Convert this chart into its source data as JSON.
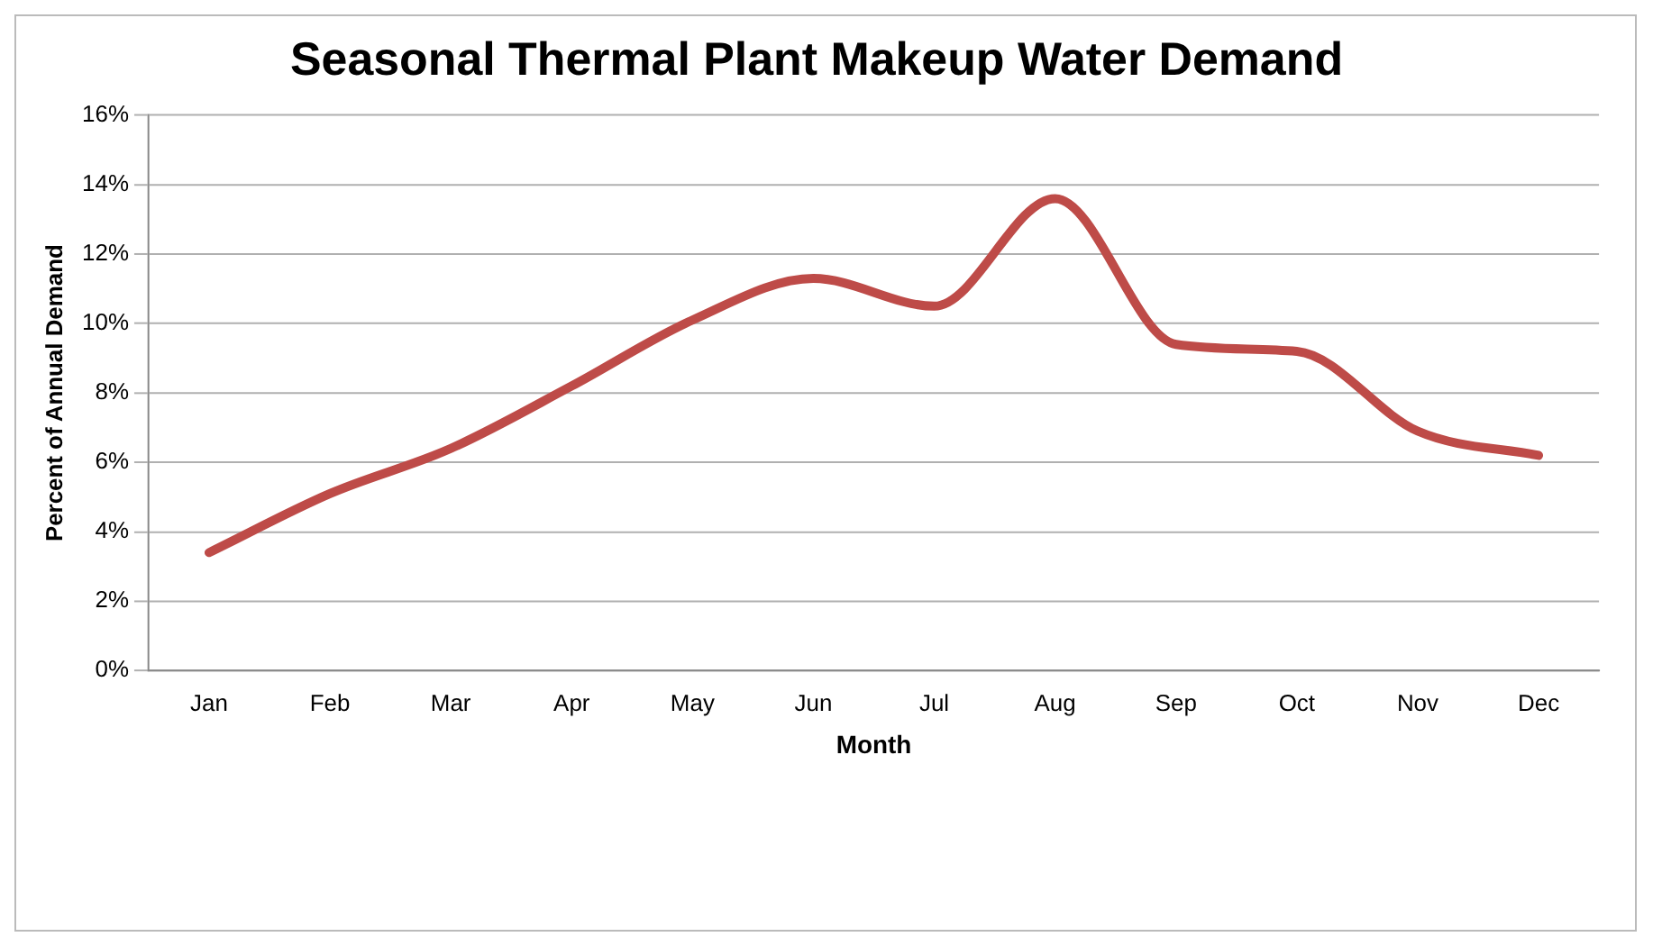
{
  "chart_data": {
    "type": "line",
    "title": "Seasonal Thermal Plant Makeup Water Demand",
    "xlabel": "Month",
    "ylabel": "Percent of Annual Demand",
    "categories": [
      "Jan",
      "Feb",
      "Mar",
      "Apr",
      "May",
      "Jun",
      "Jul",
      "Aug",
      "Sep",
      "Oct",
      "Nov",
      "Dec"
    ],
    "series": [
      {
        "color": "#be4b48",
        "values": [
          3.4,
          5.1,
          6.4,
          8.2,
          10.1,
          11.3,
          10.5,
          13.6,
          9.4,
          9.2,
          6.9,
          6.2
        ]
      }
    ],
    "ylim": [
      0,
      16
    ],
    "yticks": [
      {
        "value": 0,
        "label": "0%"
      },
      {
        "value": 2,
        "label": "2%"
      },
      {
        "value": 4,
        "label": "4%"
      },
      {
        "value": 6,
        "label": "6%"
      },
      {
        "value": 8,
        "label": "8%"
      },
      {
        "value": 10,
        "label": "10%"
      },
      {
        "value": 12,
        "label": "12%"
      },
      {
        "value": 14,
        "label": "14%"
      },
      {
        "value": 16,
        "label": "16%"
      }
    ],
    "grid": "y",
    "legend": false,
    "marker": "none",
    "line_style": "solid"
  }
}
